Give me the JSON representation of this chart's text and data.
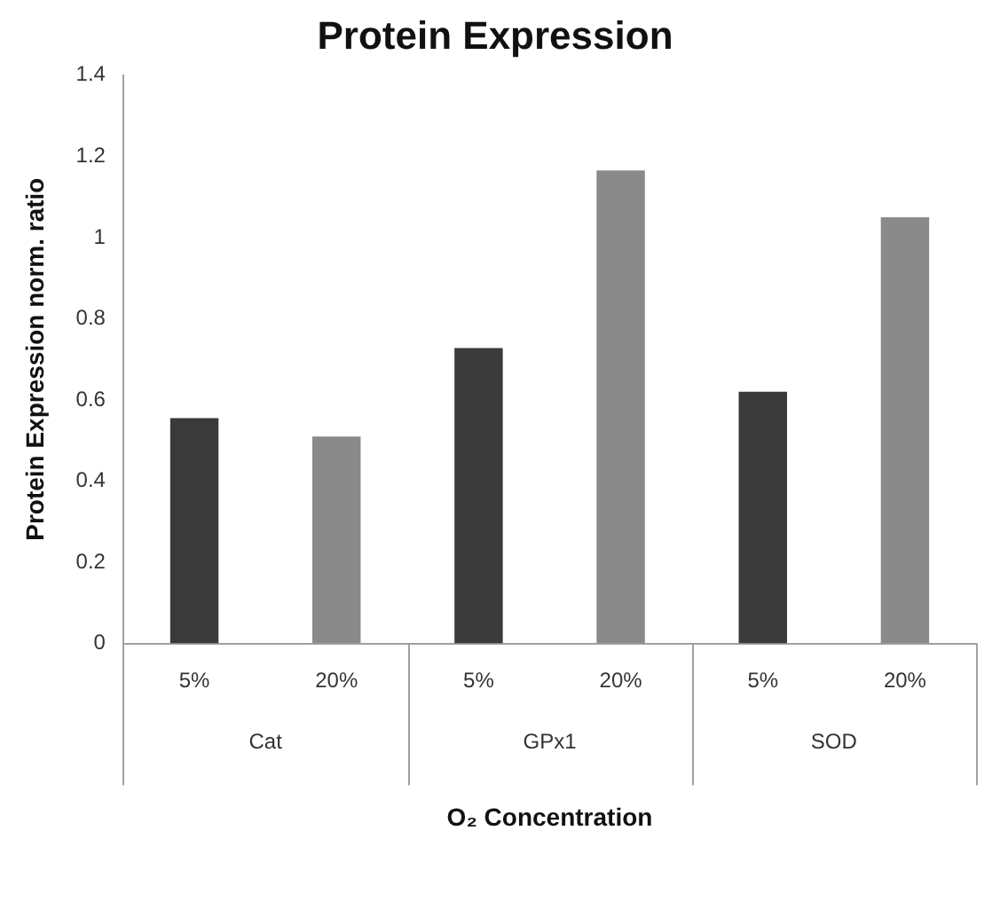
{
  "chart_data": {
    "type": "bar",
    "title": "Protein Expression",
    "xlabel": "O₂ Concentration",
    "ylabel": "Protein Expression norm. ratio",
    "categories": [
      "5%",
      "20%",
      "5%",
      "20%",
      "5%",
      "20%"
    ],
    "values": [
      0.555,
      0.51,
      0.728,
      1.165,
      0.62,
      1.05
    ],
    "colors": [
      "#3a3a3a",
      "#8a8a8a",
      "#3a3a3a",
      "#8a8a8a",
      "#3a3a3a",
      "#8a8a8a"
    ],
    "annotations": [
      "Cat",
      "GPx1",
      "SOD"
    ],
    "ylim": [
      0,
      1.4
    ],
    "yticks": [
      0,
      0.2,
      0.4,
      0.6,
      0.8,
      1,
      1.2,
      1.4
    ],
    "grid": false,
    "legend": false
  }
}
